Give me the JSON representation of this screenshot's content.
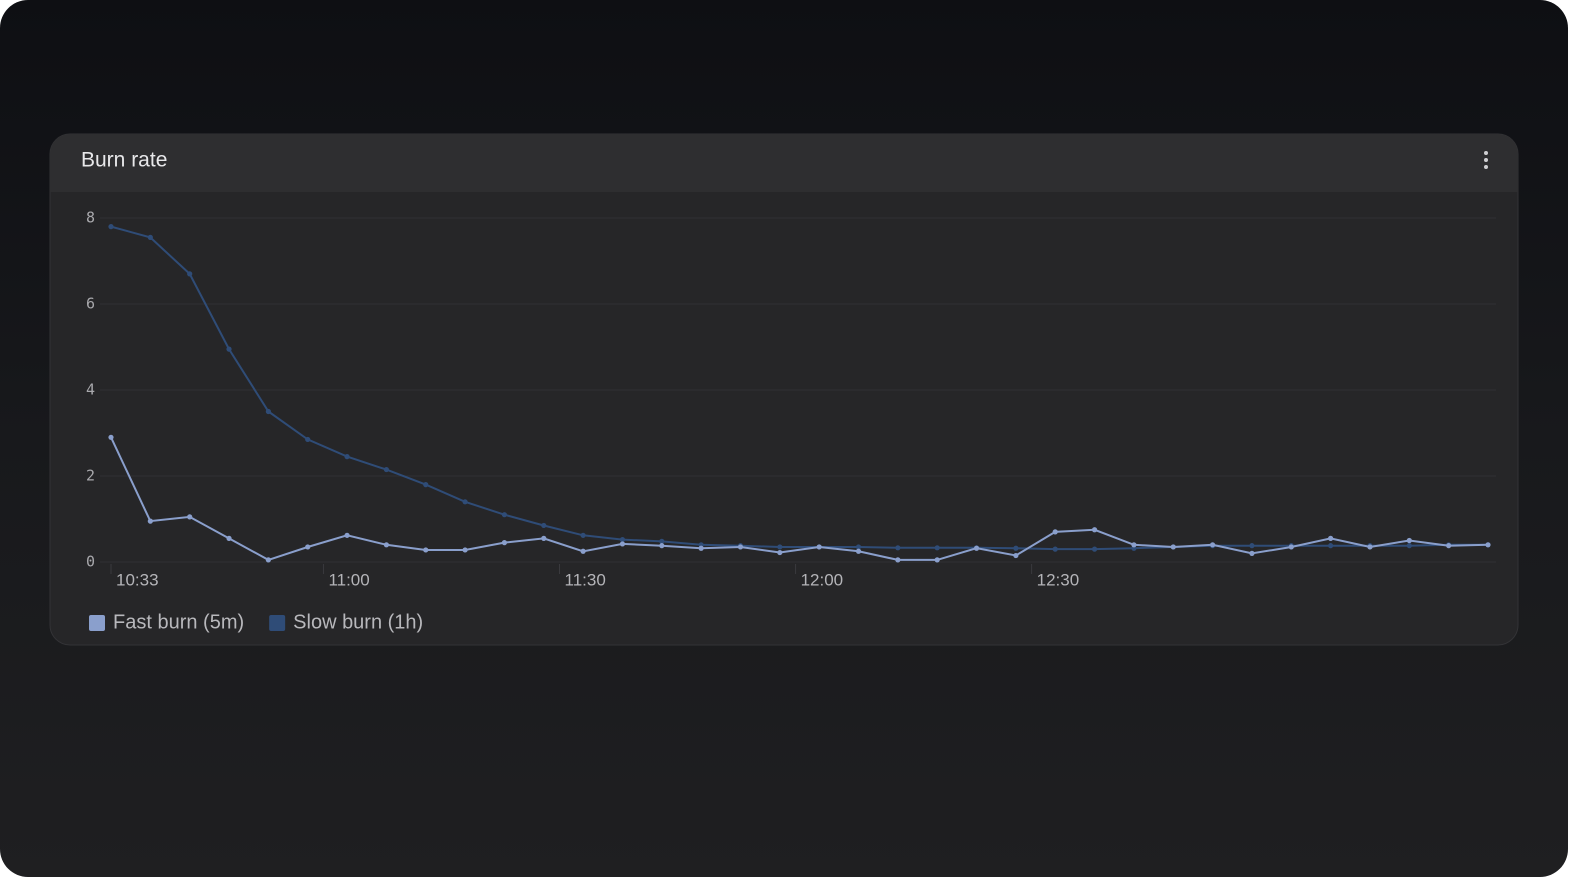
{
  "chart_data": {
    "type": "line",
    "title": "Burn rate",
    "x": [
      "10:33",
      "10:38",
      "10:43",
      "10:48",
      "10:53",
      "10:58",
      "11:03",
      "11:08",
      "11:13",
      "11:18",
      "11:23",
      "11:28",
      "11:33",
      "11:38",
      "11:43",
      "11:48",
      "11:53",
      "11:58",
      "12:03",
      "12:08",
      "12:13",
      "12:18",
      "12:23",
      "12:28",
      "12:33",
      "12:38",
      "12:43",
      "12:48",
      "12:53",
      "12:58",
      "13:03",
      "13:08",
      "13:13",
      "13:18",
      "13:23",
      "13:28"
    ],
    "xlim": [
      "10:33",
      "13:28"
    ],
    "xticks": [
      "10:33",
      "11:00",
      "11:30",
      "12:00",
      "12:30"
    ],
    "ylim": [
      0,
      8
    ],
    "yticks": [
      0,
      2,
      4,
      6,
      8
    ],
    "grid": true,
    "legend": "bottom-left",
    "series": [
      {
        "name": "Fast burn (5m)",
        "color": "#8a9fcc",
        "values": [
          2.9,
          0.95,
          1.05,
          0.55,
          0.05,
          0.35,
          0.62,
          0.4,
          0.28,
          0.28,
          0.45,
          0.55,
          0.25,
          0.42,
          0.38,
          0.32,
          0.35,
          0.22,
          0.35,
          0.25,
          0.05,
          0.05,
          0.32,
          0.15,
          0.7,
          0.75,
          0.4,
          0.35,
          0.4,
          0.2,
          0.35,
          0.55,
          0.35,
          0.5,
          0.38,
          0.4
        ]
      },
      {
        "name": "Slow burn (1h)",
        "color": "#2f4c77",
        "values": [
          7.8,
          7.55,
          6.7,
          4.95,
          3.5,
          2.85,
          2.45,
          2.15,
          1.8,
          1.4,
          1.1,
          0.85,
          0.62,
          0.52,
          0.48,
          0.4,
          0.38,
          0.35,
          0.35,
          0.35,
          0.33,
          0.33,
          0.33,
          0.32,
          0.3,
          0.3,
          0.32,
          0.35,
          0.38,
          0.38,
          0.38,
          0.38,
          0.38,
          0.38,
          0.4,
          0.4
        ]
      }
    ]
  }
}
